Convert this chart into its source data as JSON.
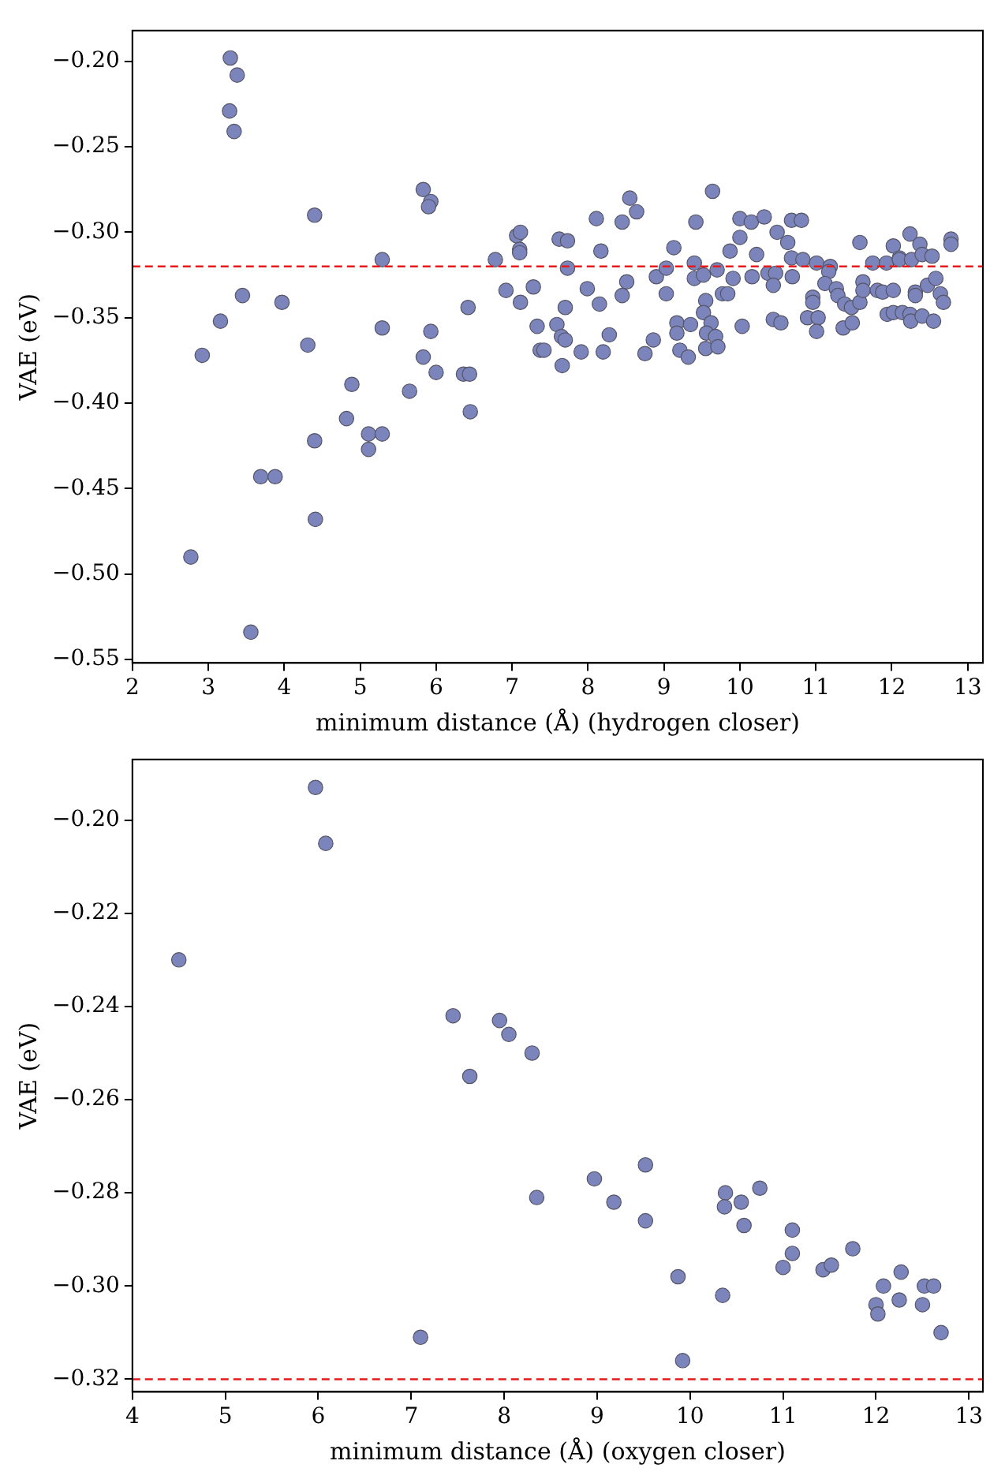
{
  "chart_data": [
    {
      "type": "scatter",
      "xlabel": "minimum distance (Å) (hydrogen closer)",
      "ylabel": "VAE (eV)",
      "marker": "circle",
      "grid": false,
      "legend": false,
      "xlim": [
        2,
        13.2
      ],
      "xticks": [
        2,
        3,
        4,
        5,
        6,
        7,
        8,
        9,
        10,
        11,
        12,
        13
      ],
      "ylim": [
        -0.552,
        -0.182
      ],
      "yticks": [
        {
          "value": -0.55,
          "label": "−0.55"
        },
        {
          "value": -0.5,
          "label": "−0.50"
        },
        {
          "value": -0.45,
          "label": "−0.45"
        },
        {
          "value": -0.4,
          "label": "−0.40"
        },
        {
          "value": -0.35,
          "label": "−0.35"
        },
        {
          "value": -0.3,
          "label": "−0.30"
        },
        {
          "value": -0.25,
          "label": "−0.25"
        },
        {
          "value": -0.2,
          "label": "−0.20"
        }
      ],
      "ref_lines": [
        {
          "axis": "y",
          "value": -0.32,
          "color": "#e41a1c",
          "line_style": "dashed"
        }
      ],
      "series": [
        {
          "color": "#7b84bb",
          "x": [
            3.29,
            3.38,
            3.28,
            3.34,
            4.4,
            5.83,
            5.93,
            5.9,
            5.29,
            3.45,
            3.16,
            3.97,
            2.92,
            4.31,
            5.29,
            5.93,
            5.83,
            6.0,
            6.42,
            6.36,
            6.44,
            6.45,
            4.89,
            5.65,
            4.82,
            5.11,
            5.29,
            5.11,
            4.4,
            3.69,
            3.88,
            4.41,
            2.77,
            3.56,
            6.78,
            6.92,
            7.06,
            7.11,
            7.1,
            7.1,
            7.28,
            7.11,
            7.33,
            7.37,
            7.42,
            7.62,
            7.73,
            7.73,
            7.7,
            7.59,
            7.65,
            7.7,
            7.66,
            7.91,
            7.99,
            8.11,
            8.17,
            8.15,
            8.28,
            8.2,
            8.45,
            8.55,
            8.64,
            8.51,
            8.45,
            8.75,
            8.86,
            8.9,
            9.03,
            9.03,
            9.13,
            9.17,
            9.17,
            9.35,
            9.21,
            9.32,
            9.42,
            9.4,
            9.4,
            9.52,
            9.7,
            9.55,
            9.52,
            9.62,
            9.56,
            9.68,
            9.55,
            9.71,
            9.64,
            9.77,
            9.84,
            9.91,
            9.87,
            10.0,
            10.15,
            10.0,
            10.03,
            10.16,
            10.22,
            10.32,
            10.37,
            10.47,
            10.44,
            10.44,
            10.54,
            10.49,
            10.63,
            10.68,
            10.81,
            10.68,
            10.69,
            10.83,
            11.01,
            11.19,
            11.17,
            11.12,
            10.96,
            10.96,
            10.89,
            11.03,
            11.01,
            11.27,
            11.29,
            11.38,
            11.47,
            11.36,
            11.48,
            11.58,
            11.58,
            11.62,
            11.62,
            11.75,
            11.81,
            11.88,
            11.93,
            12.02,
            11.94,
            12.02,
            12.02,
            12.1,
            12.1,
            12.14,
            12.24,
            12.24,
            12.26,
            12.37,
            12.4,
            12.53,
            12.31,
            12.31,
            12.25,
            12.4,
            12.55,
            12.47,
            12.58,
            12.64,
            12.68,
            12.78,
            12.78
          ],
          "values": [
            -0.198,
            -0.208,
            -0.229,
            -0.241,
            -0.29,
            -0.275,
            -0.282,
            -0.285,
            -0.316,
            -0.337,
            -0.352,
            -0.341,
            -0.372,
            -0.366,
            -0.356,
            -0.358,
            -0.373,
            -0.382,
            -0.344,
            -0.383,
            -0.383,
            -0.405,
            -0.389,
            -0.393,
            -0.409,
            -0.418,
            -0.418,
            -0.427,
            -0.422,
            -0.443,
            -0.443,
            -0.468,
            -0.49,
            -0.534,
            -0.316,
            -0.334,
            -0.302,
            -0.3,
            -0.31,
            -0.312,
            -0.332,
            -0.341,
            -0.355,
            -0.369,
            -0.369,
            -0.304,
            -0.305,
            -0.321,
            -0.344,
            -0.354,
            -0.361,
            -0.363,
            -0.378,
            -0.37,
            -0.333,
            -0.292,
            -0.311,
            -0.342,
            -0.36,
            -0.37,
            -0.294,
            -0.28,
            -0.288,
            -0.329,
            -0.337,
            -0.371,
            -0.363,
            -0.326,
            -0.321,
            -0.336,
            -0.309,
            -0.353,
            -0.359,
            -0.354,
            -0.369,
            -0.373,
            -0.294,
            -0.318,
            -0.327,
            -0.325,
            -0.322,
            -0.34,
            -0.347,
            -0.353,
            -0.359,
            -0.361,
            -0.368,
            -0.367,
            -0.276,
            -0.336,
            -0.336,
            -0.327,
            -0.311,
            -0.292,
            -0.294,
            -0.303,
            -0.355,
            -0.326,
            -0.313,
            -0.291,
            -0.324,
            -0.324,
            -0.331,
            -0.351,
            -0.353,
            -0.3,
            -0.306,
            -0.293,
            -0.293,
            -0.315,
            -0.326,
            -0.316,
            -0.318,
            -0.32,
            -0.323,
            -0.33,
            -0.338,
            -0.341,
            -0.35,
            -0.35,
            -0.358,
            -0.333,
            -0.337,
            -0.342,
            -0.344,
            -0.356,
            -0.353,
            -0.306,
            -0.341,
            -0.329,
            -0.334,
            -0.318,
            -0.334,
            -0.335,
            -0.318,
            -0.334,
            -0.348,
            -0.347,
            -0.308,
            -0.315,
            -0.316,
            -0.347,
            -0.348,
            -0.301,
            -0.316,
            -0.307,
            -0.313,
            -0.314,
            -0.335,
            -0.337,
            -0.352,
            -0.349,
            -0.352,
            -0.331,
            -0.327,
            -0.336,
            -0.341,
            -0.304,
            -0.307
          ]
        }
      ]
    },
    {
      "type": "scatter",
      "xlabel": "minimum distance (Å) (oxygen closer)",
      "ylabel": "VAE (eV)",
      "marker": "circle",
      "grid": false,
      "legend": false,
      "xlim": [
        4,
        13.15
      ],
      "xticks": [
        4,
        5,
        6,
        7,
        8,
        9,
        10,
        11,
        12,
        13
      ],
      "ylim": [
        -0.3227,
        -0.187
      ],
      "yticks": [
        {
          "value": -0.32,
          "label": "−0.32"
        },
        {
          "value": -0.3,
          "label": "−0.30"
        },
        {
          "value": -0.28,
          "label": "−0.28"
        },
        {
          "value": -0.26,
          "label": "−0.26"
        },
        {
          "value": -0.24,
          "label": "−0.24"
        },
        {
          "value": -0.22,
          "label": "−0.22"
        },
        {
          "value": -0.2,
          "label": "−0.20"
        }
      ],
      "ref_lines": [
        {
          "axis": "y",
          "value": -0.32,
          "color": "#e41a1c",
          "line_style": "dashed"
        }
      ],
      "series": [
        {
          "color": "#7b84bb",
          "x": [
            4.5,
            5.97,
            6.08,
            7.1,
            7.45,
            7.63,
            7.95,
            8.05,
            8.3,
            8.35,
            8.97,
            9.18,
            9.52,
            9.52,
            9.87,
            9.92,
            10.35,
            10.38,
            10.37,
            10.55,
            10.58,
            10.75,
            11.0,
            11.1,
            11.1,
            11.43,
            11.52,
            11.75,
            12.0,
            12.02,
            12.08,
            12.25,
            12.27,
            12.5,
            12.52,
            12.62,
            12.7
          ],
          "values": [
            -0.23,
            -0.193,
            -0.205,
            -0.311,
            -0.242,
            -0.255,
            -0.243,
            -0.246,
            -0.25,
            -0.281,
            -0.277,
            -0.282,
            -0.274,
            -0.286,
            -0.298,
            -0.316,
            -0.302,
            -0.28,
            -0.283,
            -0.282,
            -0.287,
            -0.279,
            -0.296,
            -0.288,
            -0.293,
            -0.2965,
            -0.2955,
            -0.292,
            -0.304,
            -0.306,
            -0.3,
            -0.303,
            -0.297,
            -0.304,
            -0.3,
            -0.3,
            -0.31
          ]
        }
      ]
    }
  ]
}
